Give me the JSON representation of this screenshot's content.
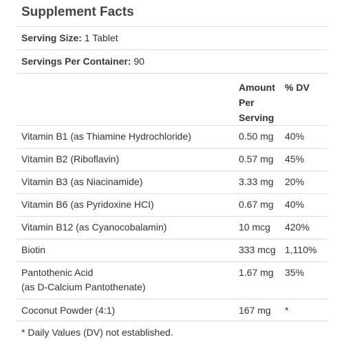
{
  "title": "Supplement Facts",
  "serving_size": {
    "label": "Serving Size:",
    "value": " 1 Tablet"
  },
  "servings_per_container": {
    "label": "Servings Per Container:",
    "value": " 90"
  },
  "header": {
    "amount_line1": "Amount",
    "amount_line2": "Per",
    "amount_line3": "Serving",
    "dv": "% DV"
  },
  "nutrients": [
    {
      "name": "Vitamin B1 (as Thiamine Hydrochloride)",
      "amount": "0.50 mg",
      "dv": "40%"
    },
    {
      "name": "Vitamin B2 (Riboflavin)",
      "amount": "0.57 mg",
      "dv": "45%"
    },
    {
      "name": "Vitamin B3 (as Niacinamide)",
      "amount": "3.33 mg",
      "dv": "20%"
    },
    {
      "name": "Vitamin B6 (as Pyridoxine HCI)",
      "amount": "0.67 mg",
      "dv": "40%"
    },
    {
      "name": "Vitamin B12 (as Cyanocobalamin)",
      "amount": "10 mcg",
      "dv": "420%"
    },
    {
      "name": "Biotin",
      "amount": "333 mcg",
      "dv": "1,110%"
    },
    {
      "name": "Pantothenic Acid",
      "name_line2": "(as D-Calcium Pantothenate)",
      "amount": "1.67 mg",
      "dv": "35%"
    },
    {
      "name": "Coconut Powder (4:1)",
      "amount": "167 mg",
      "dv": "*"
    }
  ],
  "footnote": "* Daily Values (DV) not established."
}
